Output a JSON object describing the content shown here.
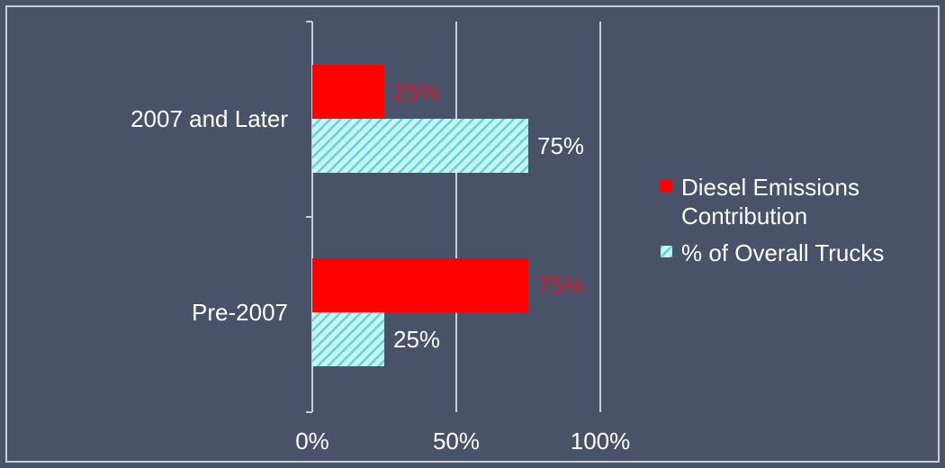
{
  "colors": {
    "background": "#485268",
    "axis": "#c9cdd6",
    "series_diesel": "#ff0000",
    "series_trucks_fill": "#c8f4f4",
    "series_trucks_hatch": "#5fd6dc",
    "label_text": "#ffffff",
    "diesel_label_text": "#d8182a"
  },
  "chart_data": {
    "type": "bar",
    "orientation": "horizontal",
    "categories": [
      "2007 and Later",
      "Pre-2007"
    ],
    "series": [
      {
        "name": "Diesel Emissions Contribution",
        "values": [
          25,
          75
        ],
        "labels": [
          "25%",
          "75%"
        ],
        "color": "#ff0000",
        "pattern": "solid"
      },
      {
        "name": "% of Overall Trucks",
        "values": [
          75,
          25
        ],
        "labels": [
          "75%",
          "25%"
        ],
        "color": "#5fd6dc",
        "pattern": "diagonal-hatch"
      }
    ],
    "x_ticks": [
      "0%",
      "50%",
      "100%"
    ],
    "xlim": [
      0,
      100
    ],
    "grid": "vertical",
    "legend": {
      "position": "right",
      "items": [
        {
          "lines": [
            "Diesel Emissions",
            "Contribution"
          ]
        },
        {
          "lines": [
            "% of Overall Trucks"
          ]
        }
      ]
    },
    "title": "",
    "xlabel": "",
    "ylabel": ""
  }
}
